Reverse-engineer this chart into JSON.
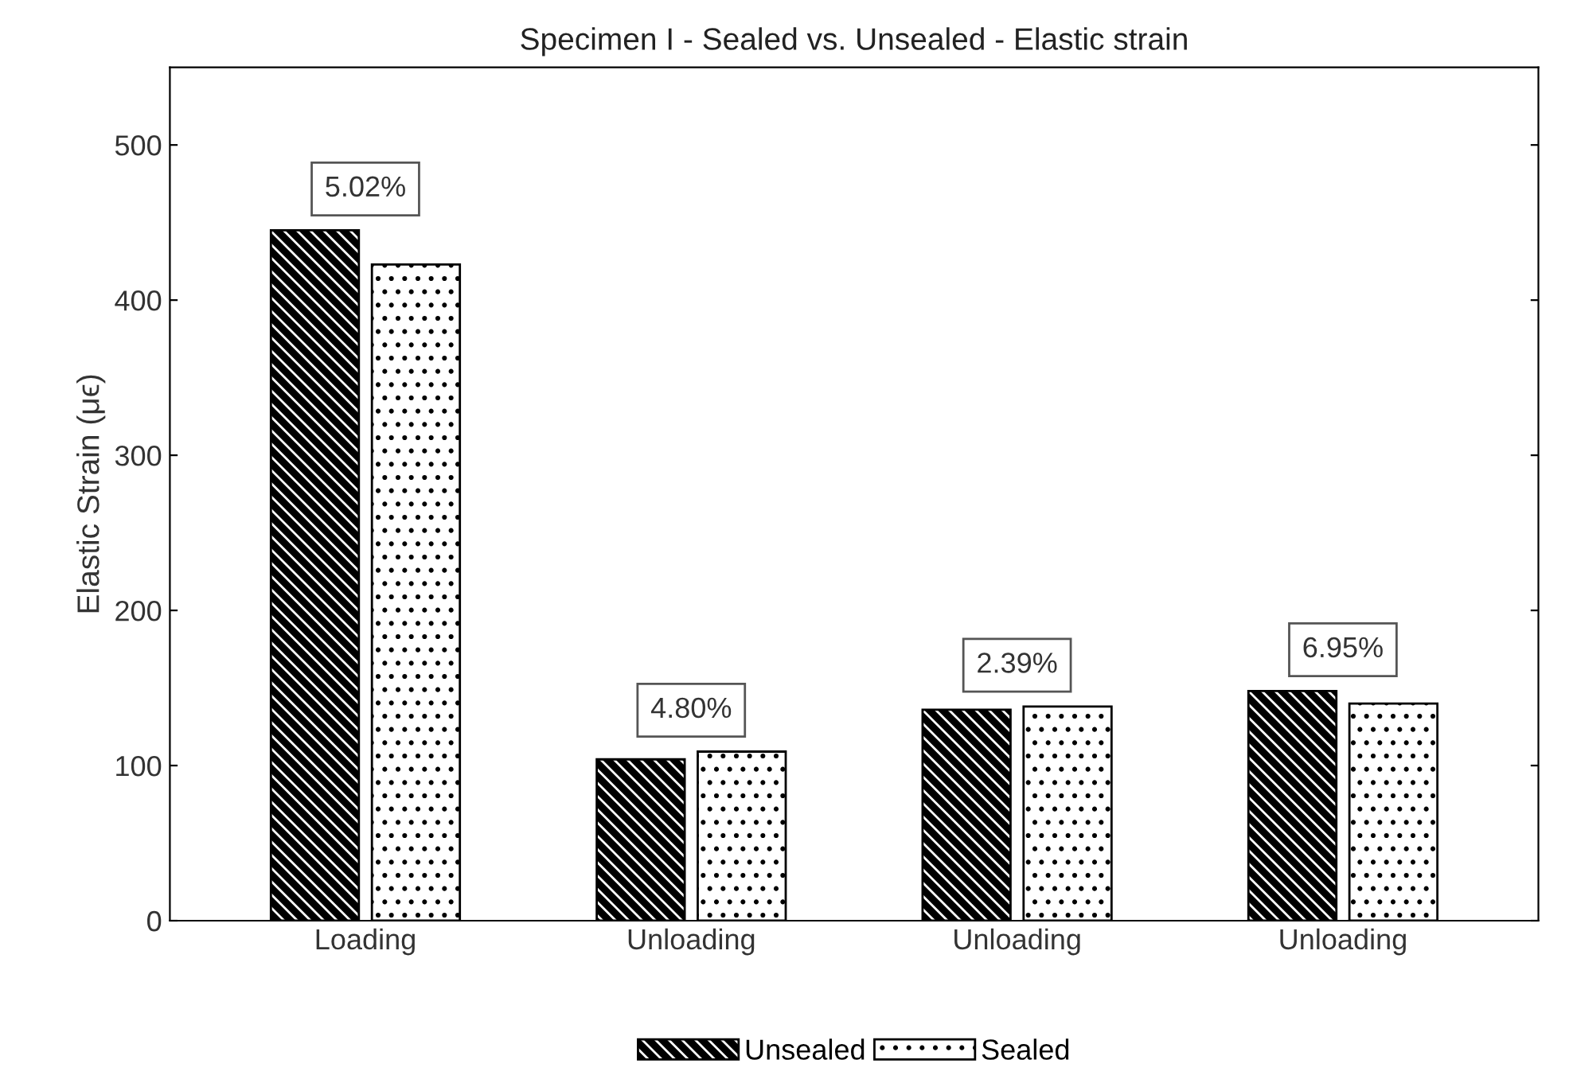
{
  "chart_data": {
    "type": "bar",
    "title": "Specimen I - Sealed vs. Unsealed - Elastic strain",
    "ylabel": "Elastic Strain (μϵ)",
    "categories": [
      "Loading",
      "Unloading",
      "Unloading",
      "Unloading"
    ],
    "series": [
      {
        "name": "Unsealed",
        "color": "#000000",
        "values": [
          445,
          104,
          136,
          148
        ]
      },
      {
        "name": "Sealed",
        "color": "#ffffff",
        "values": [
          423,
          109,
          138,
          140
        ]
      }
    ],
    "annotations": [
      "5.02%",
      "4.80%",
      "2.39%",
      "6.95%"
    ],
    "ylim": [
      0,
      550
    ],
    "yticks": [
      0,
      100,
      200,
      300,
      400,
      500
    ],
    "grid": false,
    "legend": "bottom"
  }
}
